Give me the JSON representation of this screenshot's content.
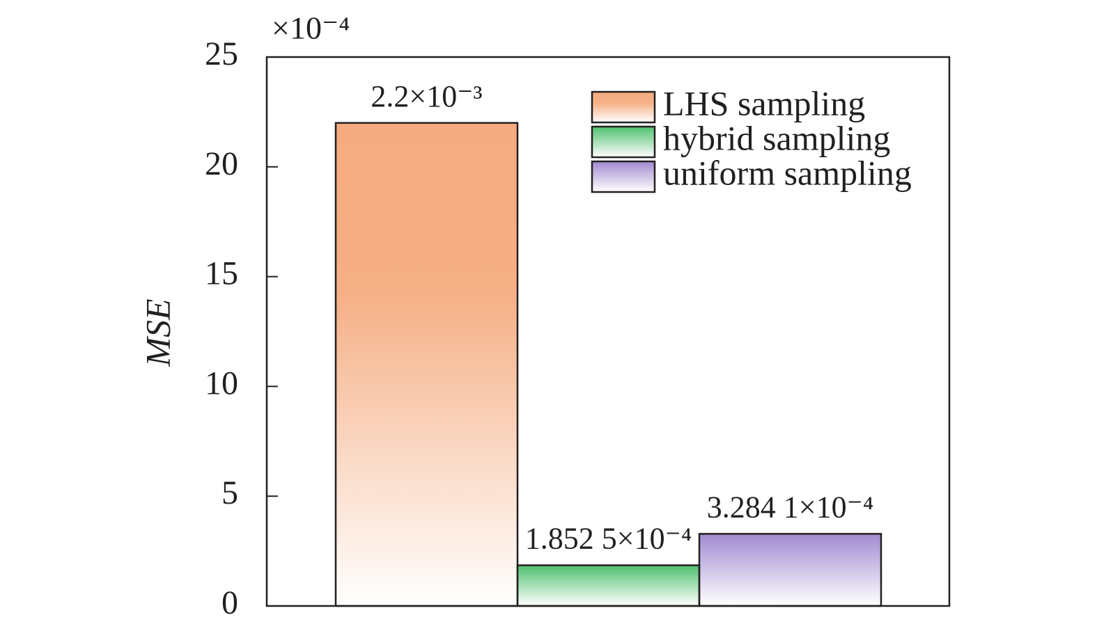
{
  "chart_data": {
    "type": "bar",
    "y_label": "MSE",
    "y_multiplier": "×10⁻⁴",
    "ylim": [
      0,
      25
    ],
    "yticks": [
      0,
      5,
      10,
      15,
      20,
      25
    ],
    "legend": "top-right",
    "series": [
      {
        "name": "LHS sampling",
        "color": "#f5ab7f",
        "values": [
          22
        ],
        "value_labels": [
          "2.2×10⁻³"
        ]
      },
      {
        "name": "hybrid sampling",
        "color": "#4fc06e",
        "values": [
          1.8525
        ],
        "value_labels": [
          "1.852 5×10⁻⁴"
        ]
      },
      {
        "name": "uniform sampling",
        "color": "#a18ad0",
        "values": [
          3.2841
        ],
        "value_labels": [
          "3.284 1×10⁻⁴"
        ]
      }
    ]
  }
}
